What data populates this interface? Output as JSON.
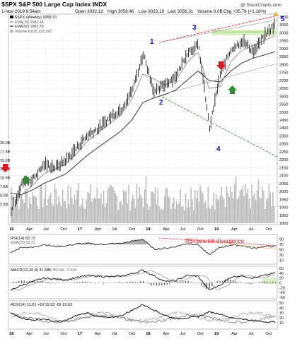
{
  "header": {
    "title": "$SPX S&P 500 Large Cap Index INDX",
    "watermark": "@ StockCharts.com",
    "date": "1-Nov-2019 9:54am",
    "open": "Open 3032.12",
    "high": "High 3058.46",
    "low": "Low 3023.19",
    "last": "Last 3058.31",
    "volume": "Volume 8.0B",
    "chg": "Chg +35.76 (+1.18%)"
  },
  "legend": {
    "spx": "$SPX (Weekly) 3058.31",
    "ema20": "EMA(20) 2982.44",
    "ema50": "EMA(50) 2881.70",
    "volume": "Volume 8,025,123,328"
  },
  "annotations": {
    "wave1": "1",
    "wave2": "2",
    "wave3": "3",
    "wave4": "4",
    "wave5": "5",
    "rsi_note": "RSI bearish divergence"
  },
  "axes": {
    "price_ticks": [
      "3100",
      "3050",
      "3000",
      "2950",
      "2900",
      "2850",
      "2800",
      "2750",
      "2700",
      "2650",
      "2600",
      "2550",
      "2500",
      "2450",
      "2400",
      "2350",
      "2300",
      "2250",
      "2200",
      "2150",
      "2100",
      "2050",
      "2000",
      "1950",
      "1900",
      "1850",
      "1800"
    ],
    "volume_ticks": [
      "20.0B",
      "17.5B",
      "15.0B",
      "12.5B",
      "10.0B",
      "7.5B",
      "5.0B",
      "2.5B"
    ],
    "x_labels": [
      "16",
      "Apr",
      "Jul",
      "Oct",
      "17",
      "Apr",
      "Jul",
      "Oct",
      "18",
      "Apr",
      "Jul",
      "Oct",
      "19",
      "Apr",
      "Jul",
      "Oct"
    ],
    "rsi_ticks": [
      "90",
      "70",
      "50",
      "30",
      "10"
    ],
    "macd_ticks": [
      "60",
      "40",
      "20",
      "0",
      "-20",
      "-40",
      "-60"
    ],
    "adx_ticks": [
      "50",
      "40",
      "30",
      "20",
      "10"
    ]
  },
  "panels": {
    "rsi_label": "RSI(14) 62.72",
    "rsi_ema": "EMA(20) 59.31",
    "macd_label": "MACD(12,26,9) 41.585",
    "macd_values": "38.246, 3.339",
    "adx_label": "ADX(14) 11.61  +DI 19.52  -DI 19.63"
  },
  "colors": {
    "price": "#000000",
    "ema20": "#8a8a8a",
    "ema50": "#222222",
    "volume": "#b8b8b8",
    "resistance": "#e0141e",
    "support": "#2e8b2e",
    "wave_label": "#1010c8",
    "highlight": "#d6f0c0",
    "rsi_note": "#e0141e",
    "macd_hist": "#444444",
    "down_arrow": "#e0141e",
    "up_arrow": "#2e8b2e"
  },
  "chart_data": {
    "type": "line",
    "x": [
      "2016-01",
      "2016-03",
      "2016-05",
      "2016-07",
      "2016-09",
      "2016-11",
      "2017-01",
      "2017-03",
      "2017-05",
      "2017-07",
      "2017-09",
      "2017-11",
      "2018-01",
      "2018-02",
      "2018-04",
      "2018-06",
      "2018-08",
      "2018-10",
      "2018-12",
      "2019-02",
      "2019-04",
      "2019-06",
      "2019-08",
      "2019-10",
      "2019-11"
    ],
    "series": [
      {
        "name": "$SPX (Weekly) 3058.31",
        "values": [
          1880,
          2050,
          2080,
          2170,
          2150,
          2200,
          2280,
          2360,
          2400,
          2470,
          2520,
          2640,
          2870,
          2620,
          2680,
          2730,
          2880,
          2920,
          2400,
          2750,
          2900,
          2950,
          2880,
          2980,
          3058
        ]
      },
      {
        "name": "EMA(20) 2982.44",
        "values": [
          1950,
          1980,
          2040,
          2110,
          2140,
          2170,
          2240,
          2320,
          2370,
          2430,
          2480,
          2580,
          2740,
          2710,
          2670,
          2700,
          2810,
          2880,
          2650,
          2660,
          2820,
          2890,
          2920,
          2950,
          2982
        ]
      },
      {
        "name": "EMA(50) 2881.70",
        "values": [
          1990,
          1980,
          2010,
          2050,
          2080,
          2110,
          2170,
          2230,
          2280,
          2330,
          2380,
          2450,
          2560,
          2590,
          2610,
          2640,
          2700,
          2760,
          2700,
          2690,
          2760,
          2810,
          2840,
          2860,
          2881
        ]
      }
    ],
    "ylim": [
      1800,
      3100
    ],
    "rsi": {
      "label": "RSI(14) 62.72",
      "ylim": [
        0,
        100
      ],
      "values": [
        38,
        60,
        58,
        70,
        62,
        64,
        72,
        74,
        70,
        72,
        74,
        82,
        90,
        52,
        55,
        62,
        74,
        70,
        30,
        58,
        68,
        66,
        55,
        62,
        63
      ]
    },
    "macd": {
      "label": "MACD(12,26,9) 41.585",
      "ylim": [
        -60,
        60
      ],
      "values": [
        -30,
        -10,
        5,
        20,
        15,
        12,
        22,
        30,
        28,
        25,
        28,
        38,
        52,
        30,
        5,
        10,
        30,
        28,
        -30,
        -10,
        25,
        30,
        20,
        30,
        41
      ]
    },
    "adx": {
      "label": "ADX(14) 11.61",
      "ylim": [
        0,
        50
      ],
      "values": [
        30,
        20,
        15,
        18,
        12,
        14,
        25,
        30,
        22,
        20,
        24,
        35,
        47,
        36,
        25,
        18,
        20,
        22,
        32,
        28,
        20,
        18,
        14,
        12,
        11.6
      ]
    }
  }
}
